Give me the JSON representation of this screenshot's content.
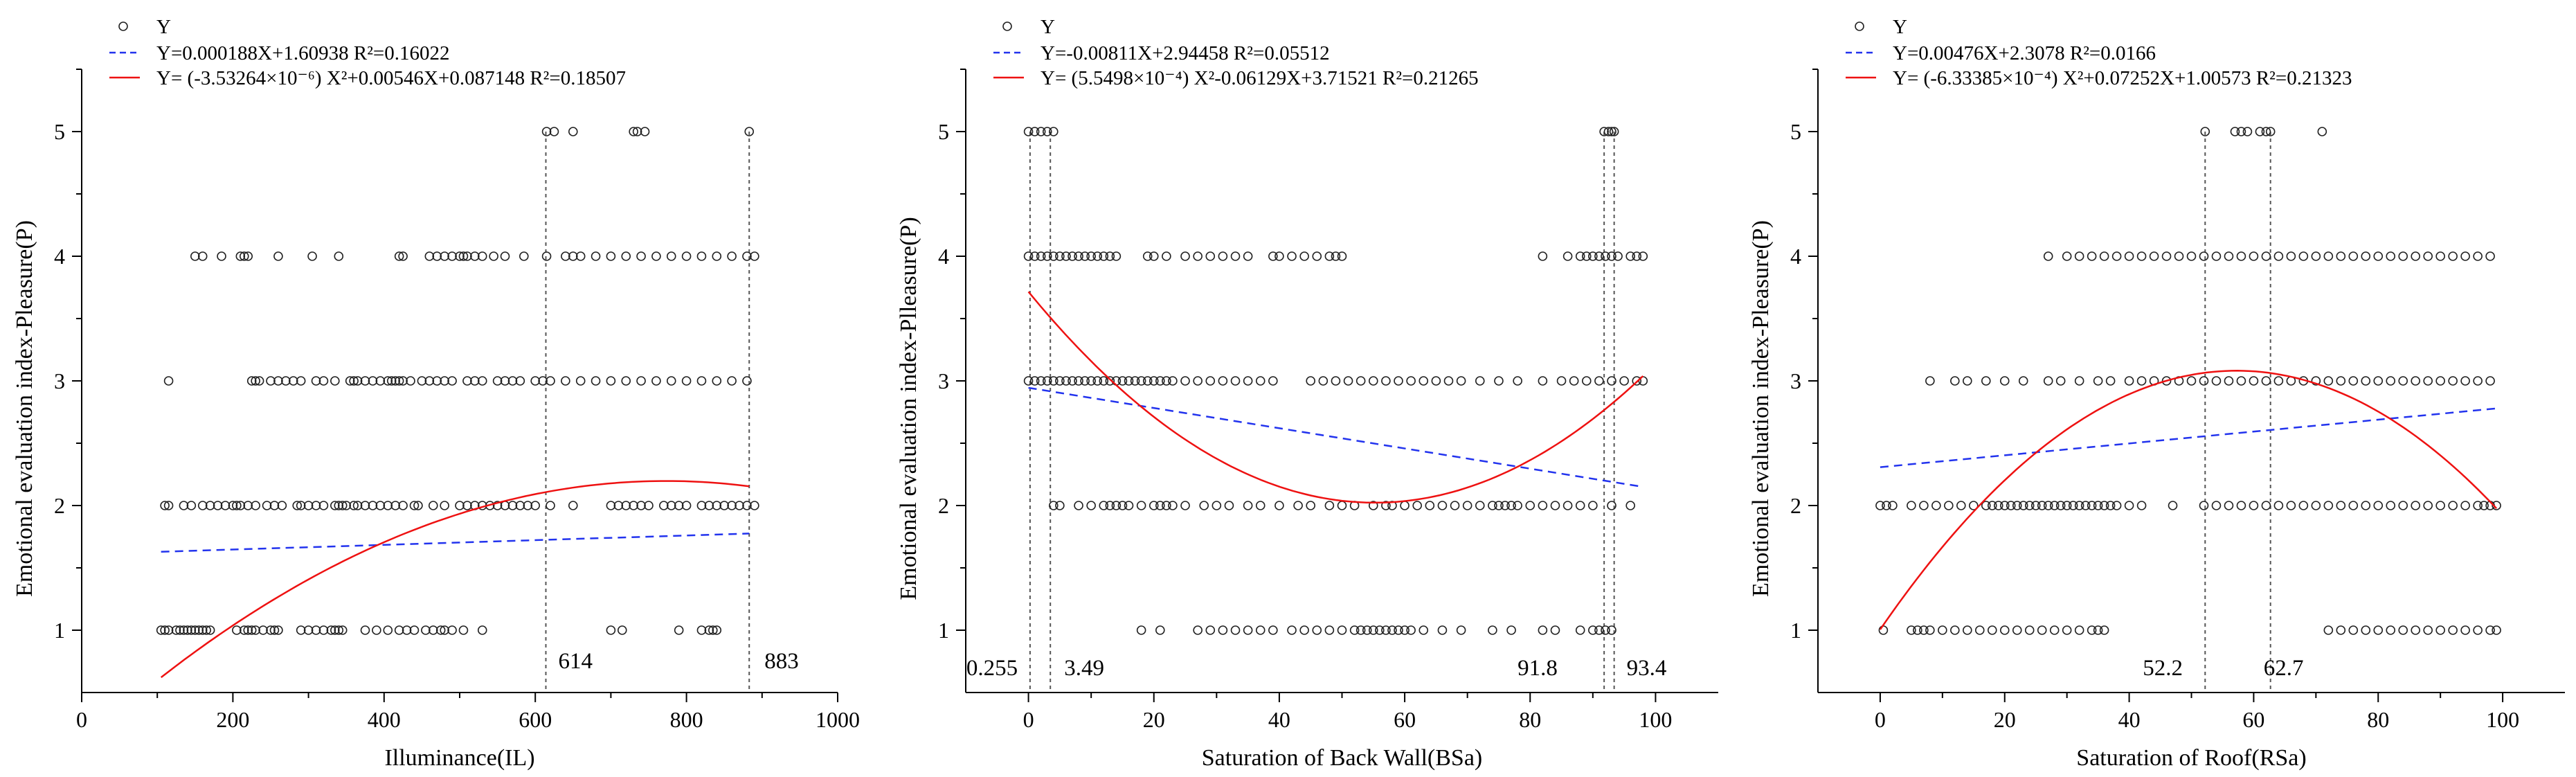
{
  "chart_data": [
    {
      "type": "scatter",
      "xlabel": "Illuminance(IL)",
      "ylabel": "Emotional evaluation index-Pleasure(P)",
      "xlim": [
        0,
        1000
      ],
      "ylim": [
        0.5,
        5.5
      ],
      "xticks": [
        "0",
        "200",
        "400",
        "600",
        "800",
        "1000"
      ],
      "yticks": [
        "1",
        "2",
        "3",
        "4",
        "5"
      ],
      "legend": {
        "scatter": "Y",
        "linear": "Y=0.000188X+1.60938   R²=0.16022",
        "quadratic": "Y= (-3.53264×10⁻⁶) X²+0.00546X+0.087148   R²=0.18507"
      },
      "linear": {
        "slope": 0.000188,
        "intercept": 1.60938,
        "x_range": [
          105,
          883
        ]
      },
      "quadratic": {
        "a": -3.53264e-06,
        "b": 0.00546,
        "c": 0.087148,
        "x_range": [
          105,
          883
        ]
      },
      "vlines": [
        {
          "x": 614,
          "label": "614"
        },
        {
          "x": 883,
          "label": "883"
        }
      ],
      "points": {
        "1": [
          105,
          110,
          115,
          125,
          130,
          135,
          140,
          145,
          150,
          155,
          160,
          165,
          170,
          205,
          215,
          220,
          225,
          230,
          240,
          250,
          255,
          260,
          290,
          300,
          310,
          320,
          330,
          335,
          340,
          345,
          375,
          390,
          405,
          420,
          430,
          440,
          455,
          465,
          475,
          480,
          490,
          505,
          530,
          700,
          715,
          790,
          820,
          830,
          835,
          840
        ],
        "2": [
          110,
          115,
          135,
          145,
          160,
          170,
          180,
          190,
          200,
          205,
          210,
          220,
          230,
          245,
          255,
          265,
          285,
          290,
          300,
          310,
          320,
          335,
          340,
          345,
          350,
          360,
          365,
          375,
          385,
          395,
          405,
          415,
          425,
          440,
          445,
          465,
          480,
          500,
          510,
          520,
          530,
          540,
          550,
          560,
          570,
          580,
          590,
          600,
          620,
          650,
          700,
          710,
          720,
          730,
          740,
          750,
          770,
          780,
          790,
          800,
          820,
          830,
          840,
          850,
          860,
          870,
          880,
          890
        ],
        "3": [
          115,
          225,
          230,
          235,
          250,
          260,
          270,
          280,
          290,
          310,
          320,
          335,
          355,
          360,
          365,
          375,
          385,
          395,
          405,
          410,
          415,
          420,
          425,
          435,
          450,
          460,
          470,
          480,
          490,
          510,
          520,
          530,
          550,
          560,
          570,
          580,
          600,
          610,
          620,
          640,
          660,
          680,
          700,
          720,
          740,
          760,
          780,
          800,
          820,
          840,
          860,
          880
        ],
        "4": [
          150,
          160,
          185,
          210,
          215,
          220,
          260,
          305,
          340,
          420,
          425,
          460,
          470,
          480,
          490,
          500,
          505,
          510,
          520,
          530,
          545,
          560,
          585,
          615,
          640,
          650,
          660,
          680,
          700,
          720,
          740,
          760,
          780,
          800,
          820,
          840,
          860,
          880,
          890
        ],
        "5": [
          615,
          625,
          650,
          730,
          735,
          745,
          883
        ]
      }
    },
    {
      "type": "scatter",
      "xlabel": "Saturation of Back Wall(BSa)",
      "ylabel": "Emotional evaluation index-Plleasure(P)",
      "xlim": [
        -10,
        110
      ],
      "ylim": [
        0.5,
        5.5
      ],
      "xticks": [
        "0",
        "20",
        "40",
        "60",
        "80",
        "100"
      ],
      "yticks": [
        "1",
        "2",
        "3",
        "4",
        "5"
      ],
      "legend": {
        "scatter": "Y",
        "linear": "Y=-0.00811X+2.94458   R²=0.05512",
        "quadratic": "Y= (5.5498×10⁻⁴) X²-0.06129X+3.71521   R²=0.21265"
      },
      "linear": {
        "slope": -0.00811,
        "intercept": 2.94458,
        "x_range": [
          0,
          98
        ]
      },
      "quadratic": {
        "a": 0.00055498,
        "b": -0.06129,
        "c": 3.71521,
        "x_range": [
          0,
          98
        ]
      },
      "vlines": [
        {
          "x": 0.255,
          "label": "0.255"
        },
        {
          "x": 3.49,
          "label": "3.49"
        },
        {
          "x": 91.8,
          "label": "91.8"
        },
        {
          "x": 93.4,
          "label": "93.4"
        }
      ],
      "points": {
        "1": [
          18,
          21,
          27,
          29,
          31,
          33,
          35,
          37,
          39,
          42,
          44,
          46,
          48,
          50,
          52,
          53,
          54,
          55,
          56,
          57,
          58,
          59,
          60,
          61,
          63,
          66,
          69,
          74,
          77,
          82,
          84,
          88,
          90,
          91,
          92,
          93
        ],
        "2": [
          4,
          5,
          8,
          10,
          12,
          13,
          14,
          15,
          16,
          18,
          20,
          21,
          22,
          23,
          25,
          28,
          30,
          32,
          35,
          37,
          40,
          43,
          45,
          48,
          50,
          52,
          55,
          57,
          58,
          60,
          62,
          64,
          66,
          68,
          70,
          72,
          74,
          75,
          76,
          77,
          78,
          80,
          82,
          84,
          86,
          88,
          90,
          93,
          96
        ],
        "3": [
          0,
          1,
          2,
          3,
          4,
          5,
          6,
          7,
          8,
          9,
          10,
          11,
          12,
          13,
          14,
          15,
          16,
          17,
          18,
          19,
          20,
          21,
          22,
          23,
          25,
          27,
          29,
          31,
          33,
          35,
          37,
          39,
          45,
          47,
          49,
          51,
          53,
          55,
          57,
          59,
          61,
          63,
          65,
          67,
          69,
          72,
          75,
          78,
          82,
          85,
          87,
          89,
          91,
          93,
          95,
          97,
          98
        ],
        "4": [
          0,
          1,
          2,
          3,
          4,
          5,
          6,
          7,
          8,
          9,
          10,
          11,
          12,
          13,
          14,
          19,
          20,
          22,
          25,
          27,
          29,
          31,
          33,
          35,
          39,
          40,
          42,
          44,
          46,
          48,
          49,
          50,
          82,
          86,
          88,
          89,
          90,
          91,
          92,
          93,
          94,
          96,
          97,
          98
        ],
        "5": [
          0,
          1,
          2,
          3,
          4,
          91.8,
          92.5,
          93,
          93.4
        ]
      }
    },
    {
      "type": "scatter",
      "xlabel": "Saturation of Roof(RSa)",
      "ylabel": "Emotional evaluation index-Pleasure(P)",
      "xlim": [
        -10,
        110
      ],
      "ylim": [
        0.5,
        5.5
      ],
      "xticks": [
        "0",
        "20",
        "40",
        "60",
        "80",
        "100"
      ],
      "yticks": [
        "1",
        "2",
        "3",
        "4",
        "5"
      ],
      "legend": {
        "scatter": "Y",
        "linear": "Y=0.00476X+2.3078   R²=0.0166",
        "quadratic": "Y= (-6.33385×10⁻⁴) X²+0.07252X+1.00573   R²=0.21323"
      },
      "linear": {
        "slope": 0.00476,
        "intercept": 2.3078,
        "x_range": [
          0,
          99
        ]
      },
      "quadratic": {
        "a": -0.000633385,
        "b": 0.07252,
        "c": 1.00573,
        "x_range": [
          0,
          99
        ]
      },
      "vlines": [
        {
          "x": 52.2,
          "label": "52.2"
        },
        {
          "x": 62.7,
          "label": "62.7"
        }
      ],
      "points": {
        "1": [
          0.5,
          5,
          6,
          7,
          8,
          10,
          12,
          14,
          16,
          18,
          20,
          22,
          24,
          26,
          28,
          30,
          32,
          34,
          35,
          36,
          72,
          74,
          76,
          78,
          80,
          82,
          84,
          86,
          88,
          90,
          92,
          94,
          96,
          98,
          99
        ],
        "2": [
          0,
          1,
          2,
          5,
          7,
          9,
          11,
          13,
          15,
          17,
          18,
          19,
          20,
          21,
          22,
          23,
          24,
          25,
          26,
          27,
          28,
          29,
          30,
          31,
          32,
          33,
          34,
          35,
          36,
          37,
          38,
          40,
          42,
          47,
          52,
          54,
          56,
          58,
          60,
          62,
          64,
          66,
          68,
          70,
          72,
          74,
          76,
          78,
          80,
          82,
          84,
          86,
          88,
          90,
          92,
          94,
          96,
          97,
          98,
          99
        ],
        "3": [
          8,
          12,
          14,
          17,
          20,
          23,
          27,
          29,
          32,
          35,
          37,
          40,
          42,
          44,
          46,
          48,
          50,
          52,
          54,
          56,
          58,
          60,
          62,
          64,
          66,
          68,
          70,
          72,
          74,
          76,
          78,
          80,
          82,
          84,
          86,
          88,
          90,
          92,
          94,
          96,
          98
        ],
        "4": [
          27,
          30,
          32,
          34,
          36,
          38,
          40,
          42,
          44,
          46,
          48,
          50,
          52,
          54,
          56,
          58,
          60,
          62,
          64,
          66,
          68,
          70,
          72,
          74,
          76,
          78,
          80,
          82,
          84,
          86,
          88,
          90,
          92,
          94,
          96,
          98
        ],
        "5": [
          52.2,
          57,
          58,
          59,
          61,
          62,
          62.7,
          71
        ]
      }
    }
  ]
}
